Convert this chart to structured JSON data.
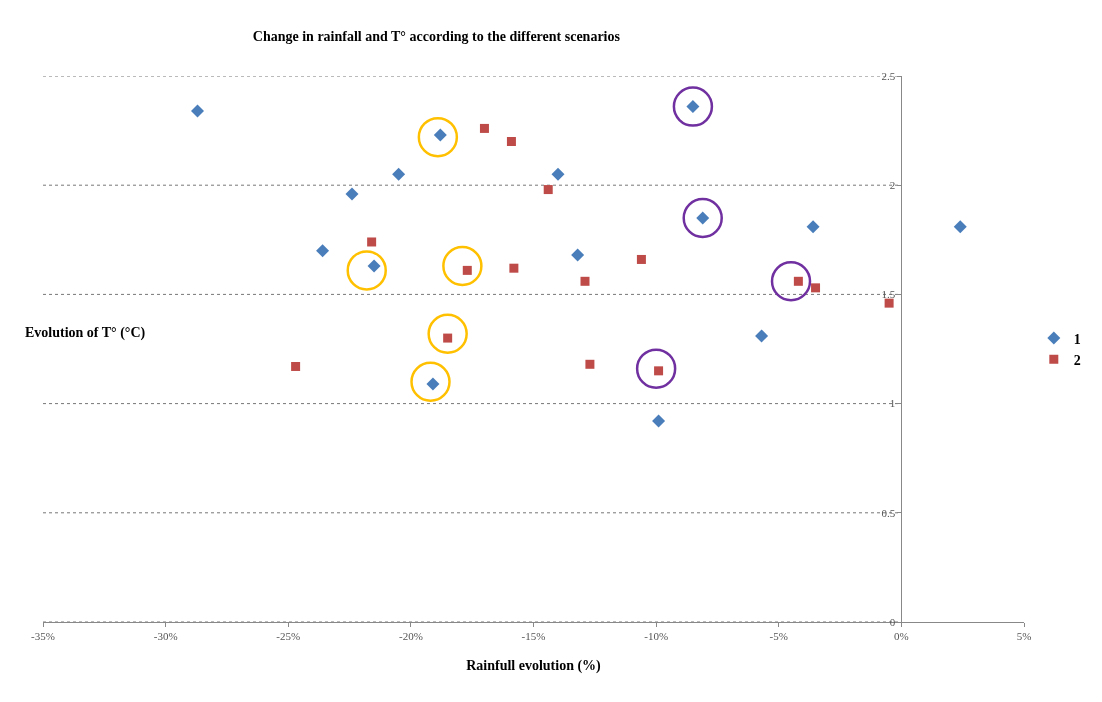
{
  "chart_data": {
    "type": "scatter",
    "title": "Change in rainfall and T° according to the different scenarios",
    "xlabel": "Rainfull evolution (%)",
    "ylabel": "Evolution of T° (°C)",
    "xlim": [
      -35,
      5
    ],
    "xticks": [
      {
        "value": -35,
        "label": "-35%"
      },
      {
        "value": -30,
        "label": "-30%"
      },
      {
        "value": -25,
        "label": "-25%"
      },
      {
        "value": -20,
        "label": "-20%"
      },
      {
        "value": -15,
        "label": "-15%"
      },
      {
        "value": -10,
        "label": "-10%"
      },
      {
        "value": -5,
        "label": "-5%"
      },
      {
        "value": 0,
        "label": "0%"
      },
      {
        "value": 5,
        "label": "5%"
      }
    ],
    "ylim": [
      0,
      2.5
    ],
    "yticks": [
      0,
      0.5,
      1,
      1.5,
      2,
      2.5
    ],
    "grid": "y",
    "legend": "right",
    "series": [
      {
        "name": "1",
        "color": "#4a7ebb",
        "marker": "diamond",
        "x": [
          -28.7,
          -23.6,
          -22.4,
          -21.5,
          -20.5,
          -19.1,
          -18.8,
          -14.0,
          -13.2,
          -9.9,
          -8.5,
          -8.1,
          -5.7,
          -3.6,
          2.4
        ],
        "values": [
          2.34,
          1.7,
          1.96,
          1.63,
          2.05,
          1.09,
          2.23,
          2.05,
          1.68,
          0.92,
          2.36,
          1.85,
          1.31,
          1.81,
          1.81
        ]
      },
      {
        "name": "2",
        "color": "#be4b48",
        "marker": "square",
        "x": [
          -24.7,
          -21.6,
          -18.5,
          -17.7,
          -17.0,
          -15.9,
          -15.8,
          -14.4,
          -12.9,
          -12.7,
          -10.6,
          -9.9,
          -4.2,
          -3.5,
          -0.5
        ],
        "values": [
          1.17,
          1.74,
          1.3,
          1.61,
          2.26,
          2.2,
          1.62,
          1.98,
          1.56,
          1.18,
          1.66,
          1.15,
          1.56,
          1.53,
          1.46
        ]
      },
      {
        "color": "#ffc000",
        "marker": "circle",
        "x": [
          -18.9,
          -21.8,
          -17.9,
          -18.5,
          -19.2
        ],
        "values": [
          2.22,
          1.61,
          1.63,
          1.32,
          1.1
        ]
      },
      {
        "color": "#7030a0",
        "marker": "circle",
        "x": [
          -8.5,
          -8.1,
          -4.5,
          -10.0
        ],
        "values": [
          2.36,
          1.85,
          1.56,
          1.16
        ]
      }
    ]
  }
}
